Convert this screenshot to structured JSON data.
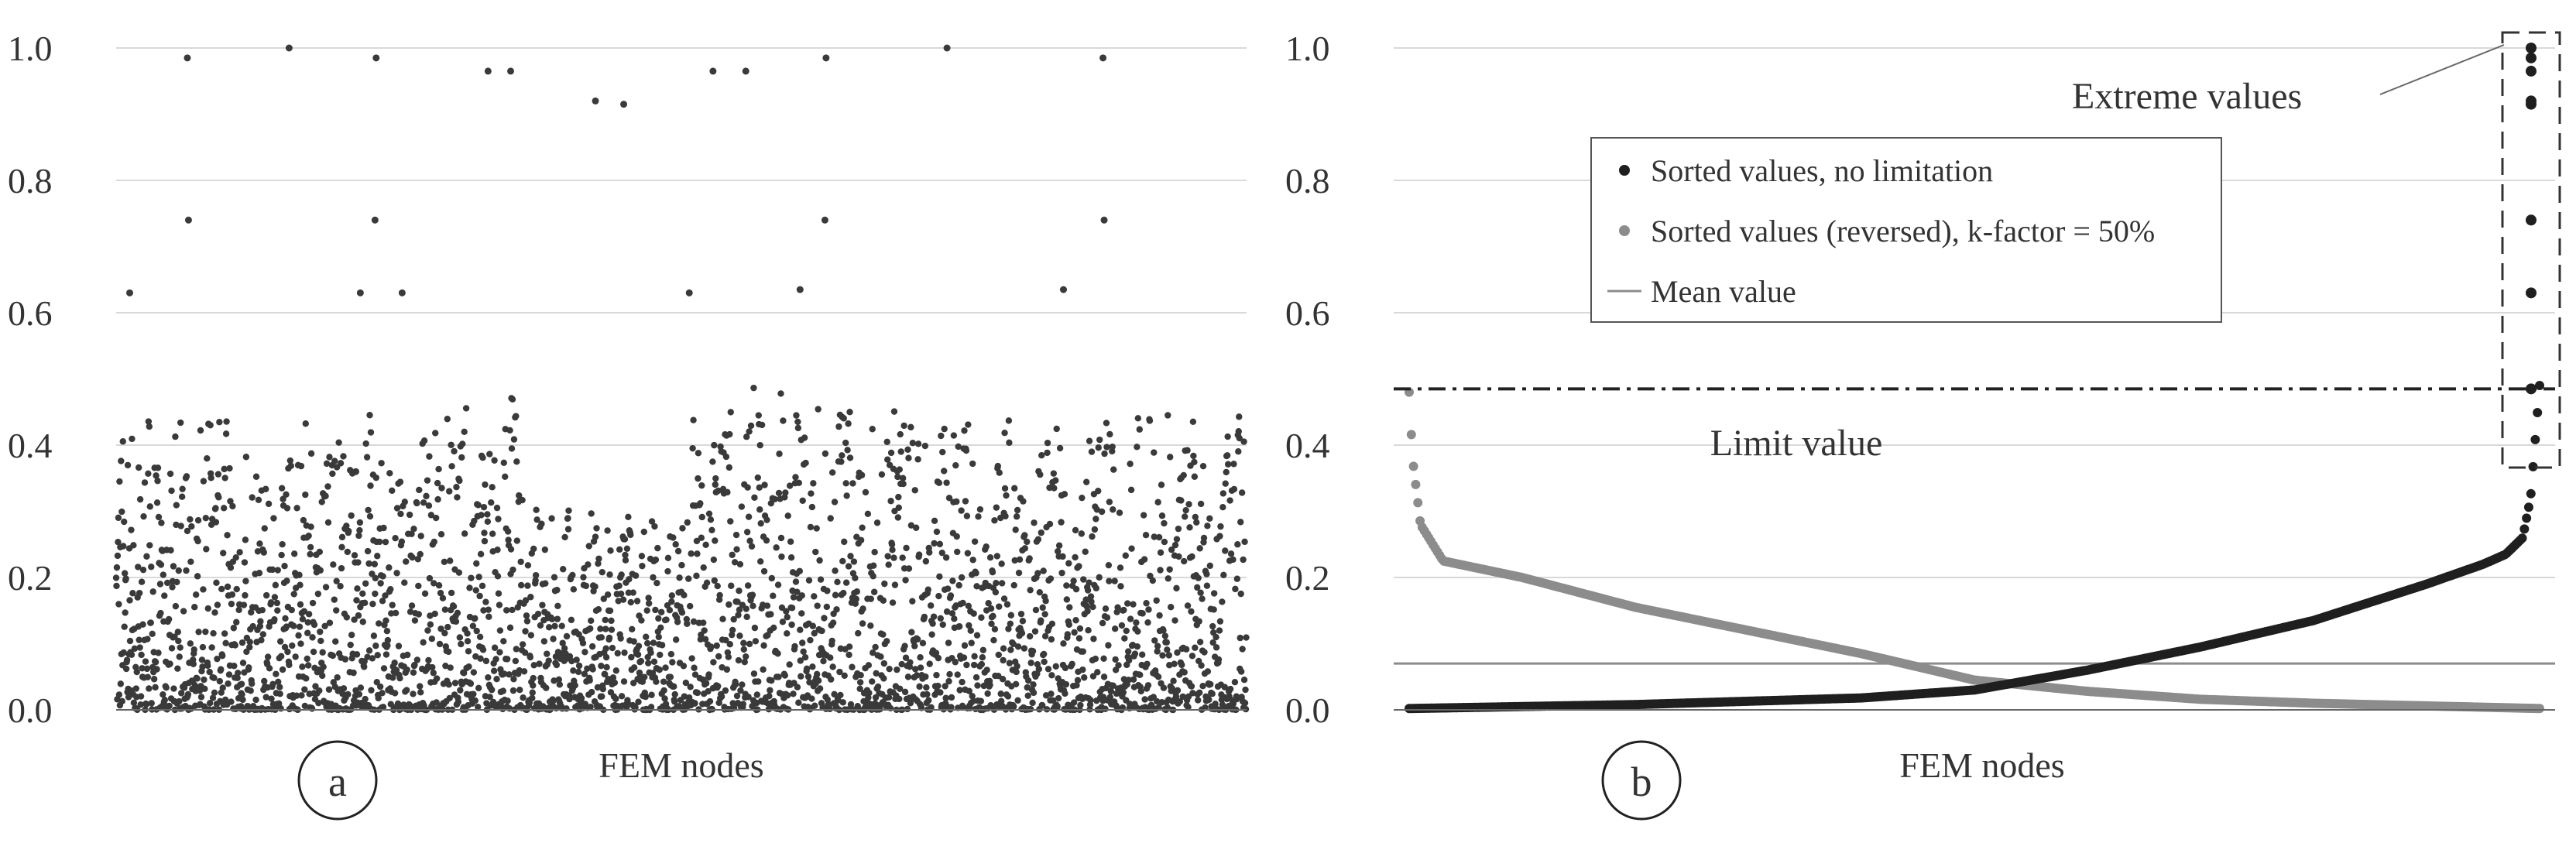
{
  "figure": {
    "panels": [
      {
        "id": "a",
        "badge": "a",
        "xlabel": "FEM nodes",
        "ytick_labels": [
          "0.0",
          "0.2",
          "0.4",
          "0.6",
          "0.8",
          "1.0"
        ]
      },
      {
        "id": "b",
        "badge": "b",
        "xlabel": "FEM nodes",
        "ytick_labels": [
          "0.0",
          "0.2",
          "0.4",
          "0.6",
          "0.8",
          "1.0"
        ],
        "annotations": {
          "extreme_values": "Extreme values",
          "limit_value": "Limit value"
        },
        "legend": [
          {
            "label": "Sorted values, no limitation",
            "marker": "dot",
            "color": "#1f1f1f"
          },
          {
            "label": "Sorted values (reversed), k-factor = 50%",
            "marker": "dot",
            "color": "#8c8c8c"
          },
          {
            "label": "Mean value",
            "marker": "line",
            "color": "#8c8c8c"
          }
        ]
      }
    ]
  },
  "chart_data": [
    {
      "type": "scatter",
      "panel": "a",
      "title": "",
      "xlabel": "FEM nodes",
      "ylabel": "",
      "ylim": [
        0,
        1.0
      ],
      "yticks": [
        0,
        0.2,
        0.4,
        0.6,
        0.8,
        1.0
      ],
      "grid": "horizontal",
      "color": "#3a3a3a",
      "node_count": 3000,
      "outliers_at_fraction_of_nodes": [
        {
          "x_frac": 0.012,
          "y": 0.63
        },
        {
          "x_frac": 0.063,
          "y": 0.985
        },
        {
          "x_frac": 0.064,
          "y": 0.74
        },
        {
          "x_frac": 0.216,
          "y": 0.63
        },
        {
          "x_frac": 0.212,
          "y": 0.36
        },
        {
          "x_frac": 0.153,
          "y": 1.0
        },
        {
          "x_frac": 0.23,
          "y": 0.985
        },
        {
          "x_frac": 0.229,
          "y": 0.74
        },
        {
          "x_frac": 0.253,
          "y": 0.63
        },
        {
          "x_frac": 0.329,
          "y": 0.965
        },
        {
          "x_frac": 0.349,
          "y": 0.965
        },
        {
          "x_frac": 0.424,
          "y": 0.92
        },
        {
          "x_frac": 0.449,
          "y": 0.915
        },
        {
          "x_frac": 0.507,
          "y": 0.63
        },
        {
          "x_frac": 0.528,
          "y": 0.965
        },
        {
          "x_frac": 0.557,
          "y": 0.965
        },
        {
          "x_frac": 0.605,
          "y": 0.635
        },
        {
          "x_frac": 0.628,
          "y": 0.985
        },
        {
          "x_frac": 0.627,
          "y": 0.74
        },
        {
          "x_frac": 0.735,
          "y": 1.0
        },
        {
          "x_frac": 0.873,
          "y": 0.985
        },
        {
          "x_frac": 0.874,
          "y": 0.74
        },
        {
          "x_frac": 0.838,
          "y": 0.635
        }
      ],
      "clusters": [
        {
          "x_from": 0.0,
          "x_to": 0.09,
          "max": 0.45
        },
        {
          "x_from": 0.09,
          "x_to": 0.2,
          "max": 0.44
        },
        {
          "x_from": 0.2,
          "x_to": 0.28,
          "max": 0.45
        },
        {
          "x_from": 0.28,
          "x_to": 0.36,
          "max": 0.49
        },
        {
          "x_from": 0.36,
          "x_to": 0.44,
          "max": 0.31
        },
        {
          "x_from": 0.44,
          "x_to": 0.51,
          "max": 0.3
        },
        {
          "x_from": 0.51,
          "x_to": 0.6,
          "max": 0.49
        },
        {
          "x_from": 0.6,
          "x_to": 0.75,
          "max": 0.46
        },
        {
          "x_from": 0.75,
          "x_to": 0.87,
          "max": 0.44
        },
        {
          "x_from": 0.87,
          "x_to": 1.0,
          "max": 0.46
        }
      ]
    },
    {
      "type": "line",
      "panel": "b",
      "title": "",
      "xlabel": "FEM nodes",
      "ylabel": "",
      "ylim": [
        0,
        1.0
      ],
      "yticks": [
        0,
        0.2,
        0.4,
        0.6,
        0.8,
        1.0
      ],
      "grid": "horizontal",
      "legend_position": "top-center",
      "series": [
        {
          "name": "Sorted values, no limitation",
          "color": "#1f1f1f",
          "x_frac": [
            0,
            0.2,
            0.4,
            0.5,
            0.6,
            0.7,
            0.8,
            0.9,
            0.95,
            0.97,
            0.985,
            0.992,
            1.0
          ],
          "y": [
            0.002,
            0.008,
            0.018,
            0.03,
            0.06,
            0.095,
            0.135,
            0.19,
            0.22,
            0.235,
            0.26,
            0.32,
            0.49
          ]
        },
        {
          "name": "Sorted values (reversed), k-factor = 50%",
          "color": "#8c8c8c",
          "x_frac": [
            0,
            0.003,
            0.01,
            0.03,
            0.1,
            0.2,
            0.3,
            0.4,
            0.5,
            0.6,
            0.7,
            0.8,
            0.9,
            1.0
          ],
          "y": [
            0.48,
            0.38,
            0.28,
            0.225,
            0.2,
            0.155,
            0.12,
            0.085,
            0.045,
            0.028,
            0.016,
            0.01,
            0.006,
            0.002
          ]
        },
        {
          "name": "Mean value",
          "color": "#8c8c8c",
          "x_frac": [
            0,
            1.0
          ],
          "y": [
            0.07,
            0.07
          ]
        }
      ],
      "limit_value": 0.485,
      "extreme_values": [
        0.485,
        0.63,
        0.74,
        0.915,
        0.92,
        0.965,
        0.985,
        1.0
      ]
    }
  ]
}
